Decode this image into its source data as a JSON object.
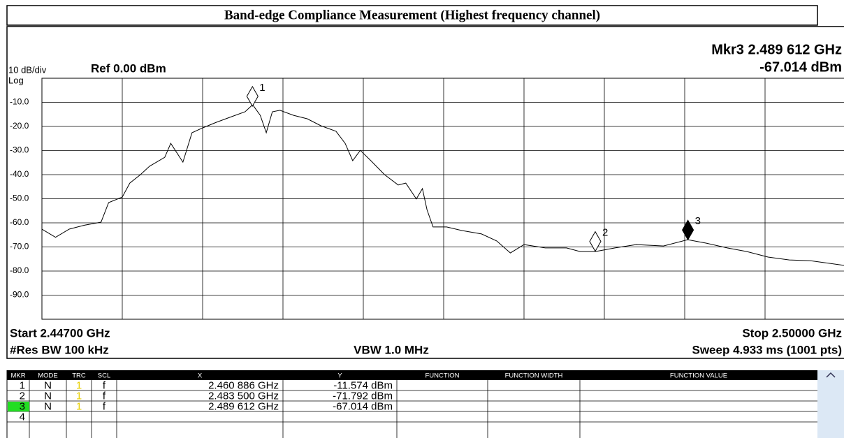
{
  "chart_data": {
    "type": "line",
    "title": "Band-edge Compliance Measurement (Highest frequency channel)",
    "annotations": {
      "marker_readout": "Mkr3 2.489 612 GHz",
      "marker_level": "-67.014 dBm",
      "scale": "10 dB/div",
      "ref": "Ref 0.00 dBm",
      "log": "Log",
      "start": "Start 2.44700 GHz",
      "stop": "Stop 2.50000 GHz",
      "rbw": "#Res BW 100 kHz",
      "vbw": "VBW 1.0 MHz",
      "sweep": "Sweep  4.933 ms (1001 pts)"
    },
    "xlim": [
      2.447,
      2.5
    ],
    "ylim": [
      -100,
      0
    ],
    "yticks": [
      {
        "value": -10,
        "label": "-10.0"
      },
      {
        "value": -20,
        "label": "-20.0"
      },
      {
        "value": -30,
        "label": "-30.0"
      },
      {
        "value": -40,
        "label": "-40.0"
      },
      {
        "value": -50,
        "label": "-50.0"
      },
      {
        "value": -60,
        "label": "-60.0"
      },
      {
        "value": -70,
        "label": "-70.0"
      },
      {
        "value": -80,
        "label": "-80.0"
      },
      {
        "value": -90,
        "label": "-90.0"
      }
    ],
    "grid": true,
    "series": [
      {
        "color": "#000000",
        "x": [
          2.447,
          2.4479,
          2.4488,
          2.4498,
          2.4509,
          2.4514,
          2.4523,
          2.4528,
          2.4535,
          2.4541,
          2.4551,
          2.4555,
          2.4563,
          2.4569,
          2.4576,
          2.4585,
          2.4594,
          2.4604,
          2.4609,
          2.4614,
          2.4618,
          2.4622,
          2.4627,
          2.4636,
          2.4645,
          2.4654,
          2.4664,
          2.467,
          2.4675,
          2.468,
          2.4687,
          2.4696,
          2.4705,
          2.471,
          2.4717,
          2.4721,
          2.4724,
          2.4728,
          2.4737,
          2.4747,
          2.476,
          2.477,
          2.4779,
          2.4788,
          2.4802,
          2.4816,
          2.4825,
          2.4835,
          2.4848,
          2.4862,
          2.488,
          2.4896,
          2.4908,
          2.4922,
          2.4935,
          2.4949,
          2.4963,
          2.4977,
          2.5
        ],
        "values": [
          -62.6,
          -66.0,
          -62.6,
          -61.0,
          -59.7,
          -51.6,
          -49.3,
          -43.5,
          -40.0,
          -36.5,
          -32.8,
          -27.0,
          -34.8,
          -22.6,
          -20.6,
          -18.3,
          -16.2,
          -13.9,
          -11.0,
          -15.4,
          -22.6,
          -13.9,
          -13.3,
          -15.4,
          -16.8,
          -19.7,
          -22.0,
          -27.0,
          -34.2,
          -29.9,
          -34.2,
          -40.0,
          -44.3,
          -43.5,
          -50.1,
          -45.8,
          -54.5,
          -61.7,
          -61.7,
          -63.2,
          -64.6,
          -67.5,
          -72.5,
          -69.0,
          -70.4,
          -70.4,
          -71.9,
          -71.9,
          -70.4,
          -69.0,
          -69.6,
          -67.0,
          -68.4,
          -70.4,
          -71.9,
          -74.2,
          -75.4,
          -75.7,
          -77.7
        ]
      }
    ],
    "markers": [
      {
        "label": "1",
        "x": 2.460886,
        "y": -11.574,
        "active": false
      },
      {
        "label": "2",
        "x": 2.4835,
        "y": -71.792,
        "active": false
      },
      {
        "label": "3",
        "x": 2.489612,
        "y": -67.014,
        "active": true
      }
    ]
  },
  "marker_table": {
    "columns": [
      "MKR",
      "MODE",
      "TRC",
      "SCL",
      "X",
      "Y",
      "FUNCTION",
      "FUNCTION WIDTH",
      "FUNCTION VALUE"
    ],
    "rows": [
      [
        "1",
        "N",
        "1",
        "f",
        "2.460 886 GHz",
        "-11.574 dBm"
      ],
      [
        "2",
        "N",
        "1",
        "f",
        "2.483 500 GHz",
        "-71.792 dBm"
      ],
      [
        "3",
        "N",
        "1",
        "f",
        "2.489 612 GHz",
        "-67.014 dBm"
      ],
      [
        "4"
      ]
    ]
  }
}
